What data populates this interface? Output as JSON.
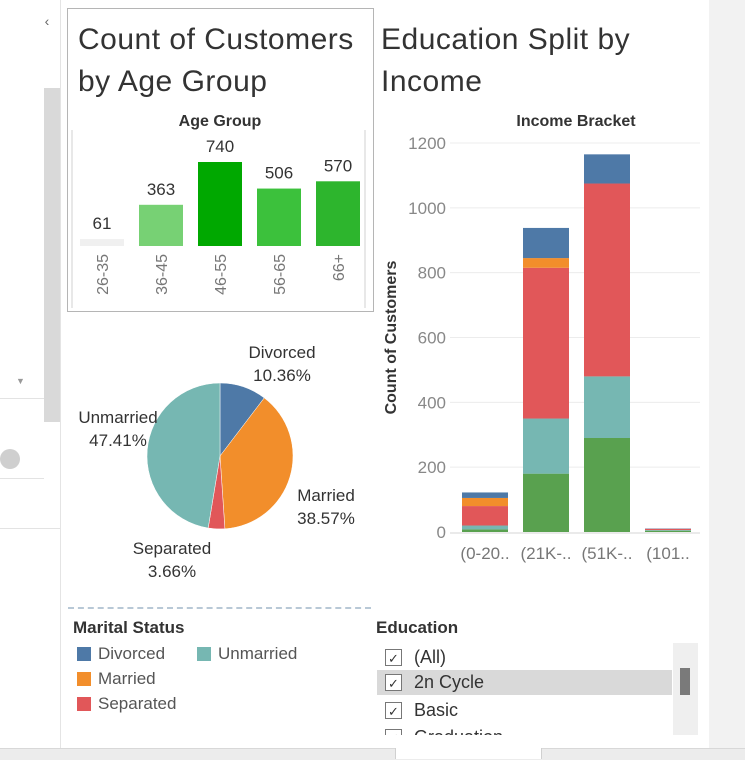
{
  "left_panel": {
    "collapse_icon": "chevron-left-icon"
  },
  "age_chart": {
    "title_line1": "Count of Customers",
    "title_line2": "by  Age Group",
    "header": "Age Group"
  },
  "education_chart": {
    "title_line1": "Education Split by",
    "title_line2": "Income",
    "header": "Income Bracket"
  },
  "marital_legend": {
    "title": "Marital Status",
    "items": [
      {
        "label": "Divorced",
        "color": "#4e79a7"
      },
      {
        "label": "Unmarried",
        "color": "#76b7b2"
      },
      {
        "label": "Married",
        "color": "#f28e2b"
      },
      {
        "label": "Separated",
        "color": "#e15759"
      }
    ]
  },
  "education_filter": {
    "title": "Education",
    "items": [
      {
        "label": "(All)",
        "checked": true
      },
      {
        "label": "2n Cycle",
        "checked": true
      },
      {
        "label": "Basic",
        "checked": true
      },
      {
        "label": "Graduation",
        "checked": true
      }
    ]
  },
  "chart_data": [
    {
      "type": "bar",
      "title": "Count of Customers by  Age Group",
      "xlabel": "Age Group",
      "categories": [
        "26-35",
        "36-45",
        "46-55",
        "56-65",
        "66+"
      ],
      "values": [
        61,
        363,
        740,
        506,
        570
      ],
      "colors": [
        "#f0f0f0",
        "#77d174",
        "#00a800",
        "#3cc13c",
        "#2db52d"
      ],
      "ylim": [
        0,
        800
      ]
    },
    {
      "type": "pie",
      "title": "Marital Status",
      "slices": [
        {
          "label": "Divorced",
          "percent": "10.36%",
          "value": 10.36,
          "color": "#4e79a7"
        },
        {
          "label": "Married",
          "percent": "38.57%",
          "value": 38.57,
          "color": "#f28e2b"
        },
        {
          "label": "Separated",
          "percent": "3.66%",
          "value": 3.66,
          "color": "#e15759"
        },
        {
          "label": "Unmarried",
          "percent": "47.41%",
          "value": 47.41,
          "color": "#76b7b2"
        }
      ]
    },
    {
      "type": "bar",
      "stacked": true,
      "title": "Education Split by Income",
      "xlabel": "Income Bracket",
      "ylabel": "Count of Customers",
      "ylim": [
        0,
        1250
      ],
      "yticks": [
        0,
        200,
        400,
        600,
        800,
        1000,
        1200
      ],
      "categories": [
        "(0-20..",
        "(21K-..",
        "(51K-..",
        "(101.."
      ],
      "series": [
        {
          "name": "Graduation",
          "color": "#59a14f",
          "values": [
            8,
            180,
            290,
            4
          ]
        },
        {
          "name": "Unmarried",
          "color": "#76b7b2",
          "values": [
            12,
            170,
            190,
            2
          ]
        },
        {
          "name": "Separated",
          "color": "#e15759",
          "values": [
            60,
            465,
            595,
            4
          ]
        },
        {
          "name": "Married",
          "color": "#f28e2b",
          "values": [
            25,
            30,
            0,
            0
          ]
        },
        {
          "name": "Divorced",
          "color": "#4e79a7",
          "values": [
            17,
            93,
            90,
            1
          ]
        }
      ]
    }
  ]
}
